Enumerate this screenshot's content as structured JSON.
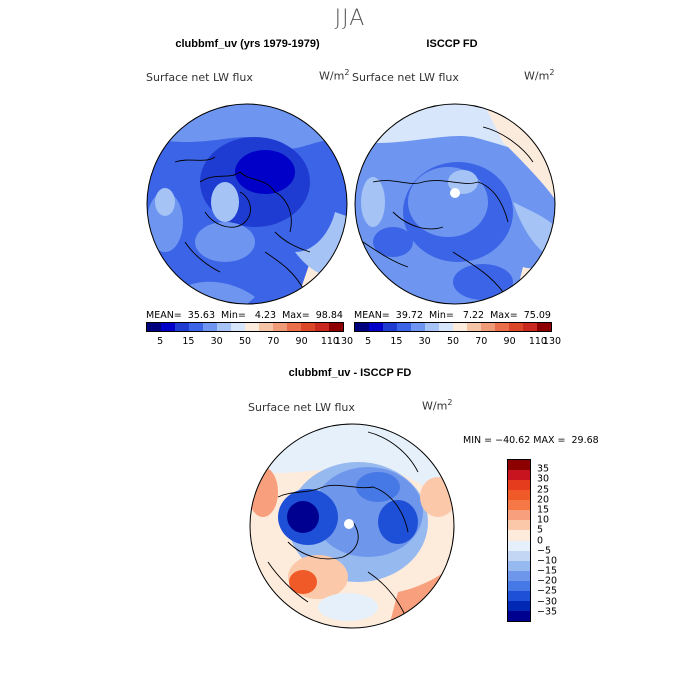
{
  "figure": {
    "season": "JJA",
    "panels": {
      "model": {
        "title": "clubbmf_uv (yrs 1979-1979)",
        "variable": "Surface net LW flux",
        "units_base": "W/m",
        "units_exp": "2",
        "stats": "MEAN=  35.63  Min=   4.23  Max=  98.84"
      },
      "obs": {
        "title": "ISCCP FD",
        "variable": "Surface net LW flux",
        "units_base": "W/m",
        "units_exp": "2",
        "stats": "MEAN=  39.72  Min=   7.22  Max=  75.09"
      },
      "diff": {
        "title": "clubbmf_uv - ISCCP FD",
        "variable": "Surface net LW flux",
        "units_base": "W/m",
        "units_exp": "2",
        "stats": "MIN = −40.62 MAX =  29.68"
      }
    },
    "colorbar_top": {
      "colors": [
        "#00007f",
        "#0000c8",
        "#1e3cd2",
        "#3c64e6",
        "#6e96f0",
        "#a5c3f5",
        "#d7e6fa",
        "#fbebdc",
        "#f5c3a5",
        "#f09b78",
        "#eb6e4b",
        "#dc4628",
        "#c8281e",
        "#8c0000"
      ],
      "ticks": [
        "5",
        "15",
        "30",
        "50",
        "70",
        "90",
        "110",
        "130"
      ]
    },
    "colorbar_diff": {
      "colors": [
        "#8c0000",
        "#c8141e",
        "#e63c1e",
        "#f05a28",
        "#f57846",
        "#f8a07d",
        "#fbc8aa",
        "#fdebdc",
        "#e6f0fa",
        "#c3d7f5",
        "#96b9f0",
        "#6e96eb",
        "#4678e6",
        "#1e50d7",
        "#0028b4",
        "#000090"
      ],
      "ticks": [
        "35",
        "30",
        "25",
        "20",
        "15",
        "10",
        "5",
        "0",
        "−5",
        "−10",
        "−15",
        "−20",
        "−25",
        "−30",
        "−35"
      ]
    }
  }
}
